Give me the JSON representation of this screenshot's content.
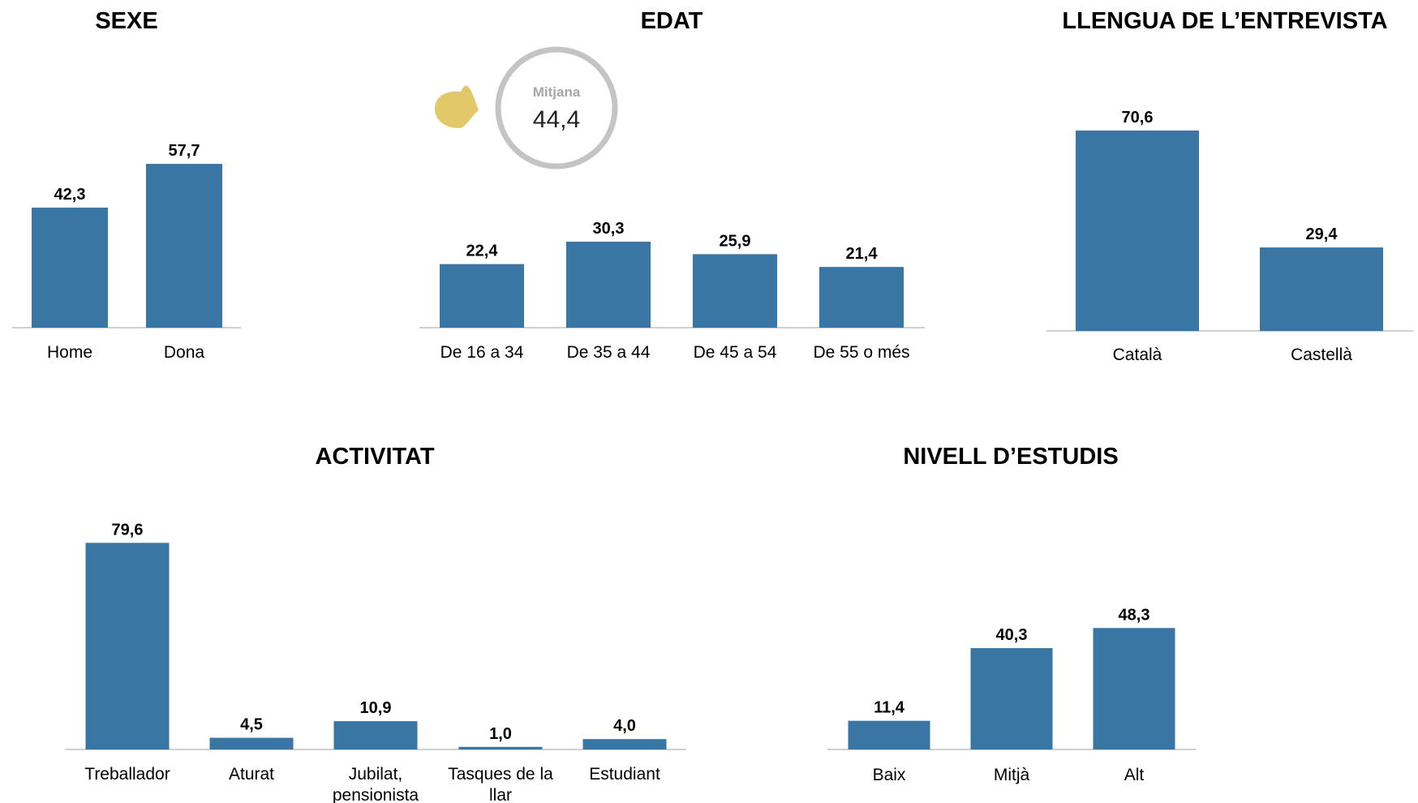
{
  "chart_data": [
    {
      "type": "bar",
      "title": "SEXE",
      "categories": [
        "Home",
        "Dona"
      ],
      "values": [
        42.3,
        57.7
      ],
      "value_labels": [
        "42,3",
        "57,7"
      ],
      "xlabel": "",
      "ylabel": "",
      "ylim": [
        0,
        100
      ],
      "grid": false,
      "bar_color": "#3a76a3"
    },
    {
      "type": "bar",
      "title": "EDAT",
      "categories": [
        "De 16 a 34",
        "De 35 a 44",
        "De 45 a 54",
        "De 55 o més"
      ],
      "values": [
        22.4,
        30.3,
        25.9,
        21.4
      ],
      "value_labels": [
        "22,4",
        "30,3",
        "25,9",
        "21,4"
      ],
      "annotation": {
        "label": "Mitjana",
        "value": "44,4",
        "marker_color": "#e3c86a"
      },
      "xlabel": "",
      "ylabel": "",
      "ylim": [
        0,
        100
      ],
      "grid": false,
      "bar_color": "#3a76a3"
    },
    {
      "type": "bar",
      "title": "LLENGUA DE L’ENTREVISTA",
      "categories": [
        "Català",
        "Castellà"
      ],
      "values": [
        70.6,
        29.4
      ],
      "value_labels": [
        "70,6",
        "29,4"
      ],
      "xlabel": "",
      "ylabel": "",
      "ylim": [
        0,
        100
      ],
      "grid": false,
      "bar_color": "#3a76a3"
    },
    {
      "type": "bar",
      "title": "ACTIVITAT",
      "categories": [
        "Treballador",
        "Aturat",
        "Jubilat, pensionista",
        "Tasques de la llar",
        "Estudiant"
      ],
      "category_lines": [
        [
          "Treballador"
        ],
        [
          "Aturat"
        ],
        [
          "Jubilat,",
          "pensionista"
        ],
        [
          "Tasques de la",
          "llar"
        ],
        [
          "Estudiant"
        ]
      ],
      "values": [
        79.6,
        4.5,
        10.9,
        1.0,
        4.0
      ],
      "value_labels": [
        "79,6",
        "4,5",
        "10,9",
        "1,0",
        "4,0"
      ],
      "xlabel": "",
      "ylabel": "",
      "ylim": [
        0,
        100
      ],
      "grid": false,
      "bar_color": "#3a76a3"
    },
    {
      "type": "bar",
      "title": "NIVELL D’ESTUDIS",
      "categories": [
        "Baix",
        "Mitjà",
        "Alt"
      ],
      "values": [
        11.4,
        40.3,
        48.3
      ],
      "value_labels": [
        "11,4",
        "40,3",
        "48,3"
      ],
      "xlabel": "",
      "ylabel": "",
      "ylim": [
        0,
        100
      ],
      "grid": false,
      "bar_color": "#3a76a3"
    }
  ]
}
